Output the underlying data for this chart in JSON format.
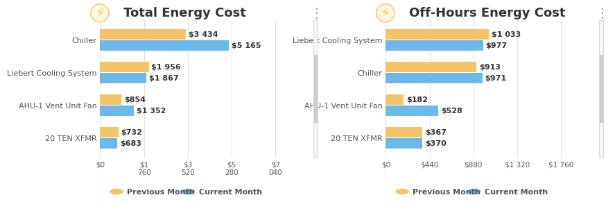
{
  "chart1": {
    "title": "Total Energy Cost",
    "categories": [
      "Chiller",
      "Liebert Cooling System",
      "AHU-1 Vent Unit Fan",
      "20 TEN XFMR"
    ],
    "prev_values": [
      3434,
      1956,
      854,
      732
    ],
    "curr_values": [
      5165,
      1867,
      1352,
      683
    ],
    "prev_labels": [
      "$3 434",
      "$1 956",
      "$854",
      "$732"
    ],
    "curr_labels": [
      "$5 165",
      "$1 867",
      "$1 352",
      "$683"
    ],
    "xlim_max": 7040,
    "xticks": [
      0,
      1760,
      3520,
      5280,
      7040
    ],
    "xticklabels": [
      "$0",
      "$1\n760",
      "$3\n520",
      "$5\n280",
      "$7\n040"
    ]
  },
  "chart2": {
    "title": "Off-Hours Energy Cost",
    "categories": [
      "Liebert Cooling System",
      "Chiller",
      "AHU-1 Vent Unit Fan",
      "20 TEN XFMR"
    ],
    "prev_values": [
      1033,
      913,
      182,
      367
    ],
    "curr_values": [
      977,
      971,
      528,
      370
    ],
    "prev_labels": [
      "$1 033",
      "$913",
      "$182",
      "$367"
    ],
    "curr_labels": [
      "$977",
      "$971",
      "$528",
      "$370"
    ],
    "xlim_max": 1760,
    "xticks": [
      0,
      440,
      880,
      1320,
      1760
    ],
    "xticklabels": [
      "$0",
      "$440",
      "$880",
      "$1 320",
      "$1 760"
    ]
  },
  "prev_color": "#F5C469",
  "curr_color": "#6CB8E8",
  "bg_color": "#FFFFFF",
  "bar_height": 0.32,
  "title_fontsize": 13,
  "label_fontsize": 8,
  "tick_fontsize": 7.5,
  "legend_label_prev": "Previous Month",
  "legend_label_curr": "Current Month"
}
